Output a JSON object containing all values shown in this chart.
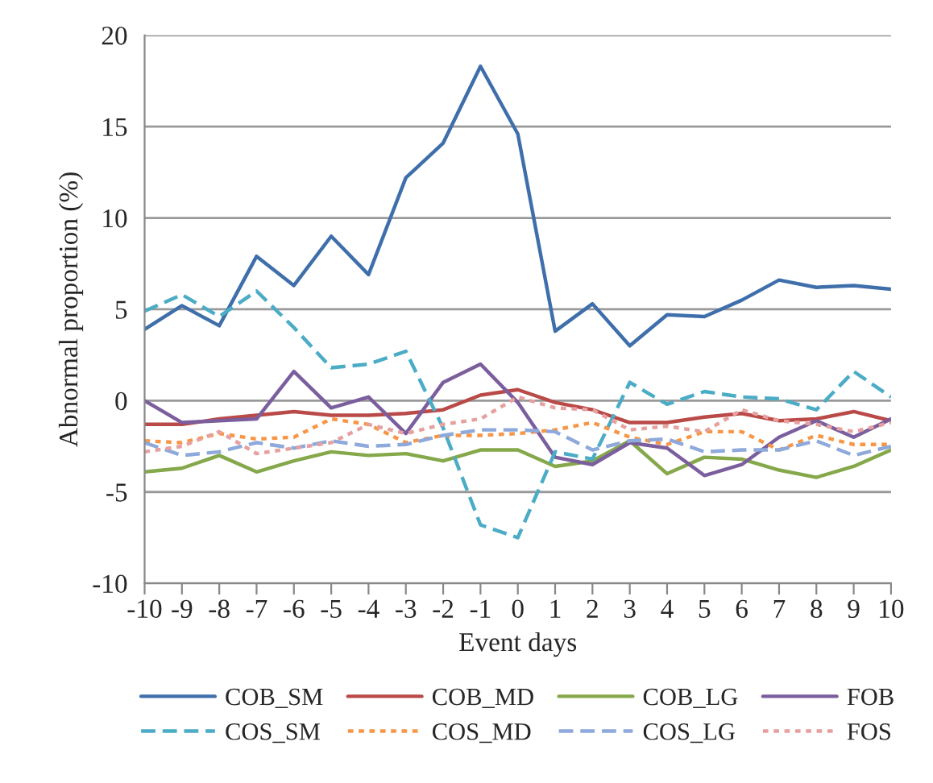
{
  "chart_data": {
    "type": "line",
    "xlabel": "Event days",
    "ylabel": "Abnormal proportion (%)",
    "categories": [
      "-10",
      "-9",
      "-8",
      "-7",
      "-6",
      "-5",
      "-4",
      "-3",
      "-2",
      "-1",
      "0",
      "1",
      "2",
      "3",
      "4",
      "5",
      "6",
      "7",
      "8",
      "9",
      "10"
    ],
    "ylim": [
      -10,
      20
    ],
    "yticks": [
      -10,
      -5,
      0,
      5,
      10,
      15,
      20
    ],
    "grid": "y",
    "legend": "bottom",
    "marker": "none",
    "series": [
      {
        "name": "COB_SM",
        "color": "#3f6fab",
        "line_style": "solid",
        "values": [
          3.9,
          5.2,
          4.1,
          7.9,
          6.3,
          9.0,
          6.9,
          12.2,
          14.1,
          18.3,
          14.6,
          3.8,
          5.3,
          3.0,
          4.7,
          4.6,
          5.5,
          6.6,
          6.2,
          6.3,
          6.1
        ]
      },
      {
        "name": "COB_MD",
        "color": "#b94a48",
        "line_style": "solid",
        "values": [
          -1.3,
          -1.3,
          -1.0,
          -0.8,
          -0.6,
          -0.8,
          -0.8,
          -0.7,
          -0.5,
          0.3,
          0.6,
          -0.1,
          -0.5,
          -1.2,
          -1.2,
          -0.9,
          -0.7,
          -1.1,
          -1.0,
          -0.6,
          -1.1
        ]
      },
      {
        "name": "COB_LG",
        "color": "#84a84a",
        "line_style": "solid",
        "values": [
          -3.9,
          -3.7,
          -3.0,
          -3.9,
          -3.3,
          -2.8,
          -3.0,
          -2.9,
          -3.3,
          -2.7,
          -2.7,
          -3.6,
          -3.3,
          -2.2,
          -4.0,
          -3.1,
          -3.2,
          -3.8,
          -4.2,
          -3.6,
          -2.7
        ]
      },
      {
        "name": "FOB",
        "color": "#7b5e9e",
        "line_style": "solid",
        "values": [
          0,
          -1.2,
          -1.1,
          -1.0,
          1.6,
          -0.4,
          0.2,
          -1.8,
          1.0,
          2.0,
          -0.1,
          -3.1,
          -3.5,
          -2.3,
          -2.6,
          -4.1,
          -3.5,
          -2.0,
          -1.1,
          -2.0,
          -1.0
        ]
      },
      {
        "name": "COS_SM",
        "color": "#4bacc6",
        "line_style": "dashed",
        "values": [
          4.9,
          5.8,
          4.6,
          6.0,
          4.0,
          1.8,
          2.0,
          2.7,
          -1.5,
          -6.8,
          -7.5,
          -2.8,
          -3.2,
          1.0,
          -0.2,
          0.5,
          0.2,
          0.1,
          -0.5,
          1.6,
          0.2
        ]
      },
      {
        "name": "COS_MD",
        "color": "#f79646",
        "line_style": "dotted",
        "values": [
          -2.2,
          -2.3,
          -1.8,
          -2.1,
          -2.0,
          -1.0,
          -1.3,
          -2.3,
          -1.9,
          -1.9,
          -1.8,
          -1.6,
          -1.2,
          -2.0,
          -2.4,
          -1.7,
          -1.7,
          -2.7,
          -1.9,
          -2.4,
          -2.4
        ]
      },
      {
        "name": "COS_LG",
        "color": "#8ea9db",
        "line_style": "dashed",
        "values": [
          -2.3,
          -3.0,
          -2.8,
          -2.3,
          -2.6,
          -2.2,
          -2.5,
          -2.4,
          -1.9,
          -1.6,
          -1.6,
          -1.7,
          -2.7,
          -2.2,
          -2.1,
          -2.8,
          -2.7,
          -2.7,
          -2.2,
          -3.0,
          -2.5
        ]
      },
      {
        "name": "FOS",
        "color": "#e6a0a0",
        "line_style": "dotted",
        "values": [
          -2.8,
          -2.5,
          -1.7,
          -2.9,
          -2.6,
          -2.3,
          -1.3,
          -1.8,
          -1.3,
          -1.0,
          0.2,
          -0.4,
          -0.5,
          -1.6,
          -1.4,
          -1.7,
          -0.5,
          -1.1,
          -1.3,
          -1.7,
          -1.2
        ]
      }
    ]
  }
}
